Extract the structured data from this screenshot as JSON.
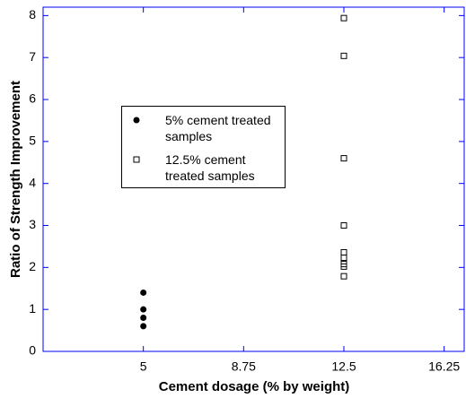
{
  "chart_data": {
    "type": "scatter",
    "xlabel": "Cement dosage (% by weight)",
    "ylabel": "Ratio of Strength Improvement",
    "xlim": [
      1.25,
      17
    ],
    "xticks": [
      5,
      8.75,
      12.5,
      16.25
    ],
    "ylim": [
      0,
      8.2
    ],
    "yticks": [
      0,
      1,
      2,
      3,
      4,
      5,
      6,
      7,
      8
    ],
    "series": [
      {
        "name": "5% cement treated samples",
        "color": "#000000",
        "marker": "filled-circle",
        "x": [
          5,
          5,
          5,
          5
        ],
        "values": [
          1.4,
          1.0,
          0.8,
          0.6
        ]
      },
      {
        "name": "12.5% cement treated samples",
        "color": "#000000",
        "marker": "open-square",
        "x": [
          12.5,
          12.5,
          12.5,
          12.5,
          12.5,
          12.5,
          12.5,
          12.5,
          12.5
        ],
        "values": [
          7.94,
          7.04,
          4.6,
          3.0,
          2.36,
          2.23,
          2.08,
          2.02,
          1.79
        ]
      }
    ]
  }
}
